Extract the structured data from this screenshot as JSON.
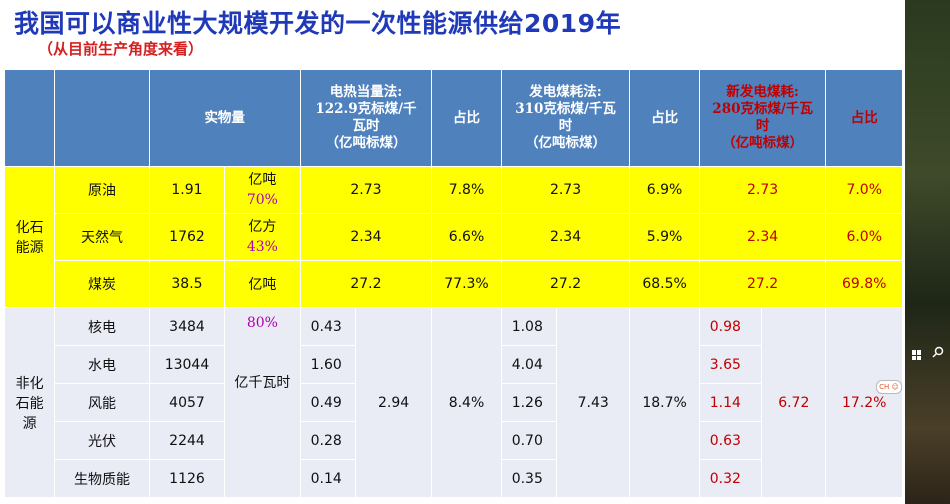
{
  "title": "我国可以商业性大规模开发的一次性能源供给2019年",
  "subtitle": "（从目前生产角度来看）",
  "tray_badge": "CH ☺",
  "headers": {
    "physical": "实物量",
    "heat_eq_1": "电热当量法:",
    "heat_eq_2": "122.9克标煤/千",
    "heat_eq_3": "瓦时",
    "heat_eq_4": "（亿吨标煤）",
    "share_1": "占比",
    "coal_gen_1": "发电煤耗法:",
    "coal_gen_2": "310克标煤/千瓦",
    "coal_gen_3": "时",
    "coal_gen_4": "（亿吨标煤）",
    "share_2": "占比",
    "new_gen_1": "新发电煤耗:",
    "new_gen_2": "280克标煤/千瓦",
    "new_gen_3": "时",
    "new_gen_4": "（亿吨标煤）",
    "share_3": "占比"
  },
  "fossil": {
    "group_label_1": "化石",
    "group_label_2": "能源",
    "rows": [
      {
        "name": "原油",
        "qty": "1.91",
        "unit": "亿吨",
        "unit_pct": "70%",
        "heat": "2.73",
        "share1": "7.8%",
        "coal": "2.73",
        "share2": "6.9%",
        "newgen": "2.73",
        "share3": "7.0%"
      },
      {
        "name": "天然气",
        "qty": "1762",
        "unit": "亿方",
        "unit_pct": "43%",
        "heat": "2.34",
        "share1": "6.6%",
        "coal": "2.34",
        "share2": "5.9%",
        "newgen": "2.34",
        "share3": "6.0%"
      },
      {
        "name": "煤炭",
        "qty": "38.5",
        "unit": "亿吨",
        "heat": "27.2",
        "share1": "77.3%",
        "coal": "27.2",
        "share2": "68.5%",
        "newgen": "27.2",
        "share3": "69.8%"
      }
    ]
  },
  "nonfossil": {
    "group_label_1": "非化",
    "group_label_2": "石能",
    "group_label_3": "源",
    "unit_pct": "80%",
    "unit": "亿千瓦时",
    "heat_total": "2.94",
    "share1": "8.4%",
    "coal_total": "7.43",
    "share2": "18.7%",
    "newgen_total": "6.72",
    "share3": "17.2%",
    "rows": [
      {
        "name": "核电",
        "qty": "3484",
        "heat": "0.43",
        "coal": "1.08",
        "newgen": "0.98"
      },
      {
        "name": "水电",
        "qty": "13044",
        "heat": "1.60",
        "coal": "4.04",
        "newgen": "3.65"
      },
      {
        "name": "风能",
        "qty": "4057",
        "heat": "0.49",
        "coal": "1.26",
        "newgen": "1.14"
      },
      {
        "name": "光伏",
        "qty": "2244",
        "heat": "0.28",
        "coal": "0.70",
        "newgen": "0.63"
      },
      {
        "name": "生物质能",
        "qty": "1126",
        "heat": "0.14",
        "coal": "0.35",
        "newgen": "0.32"
      }
    ]
  }
}
